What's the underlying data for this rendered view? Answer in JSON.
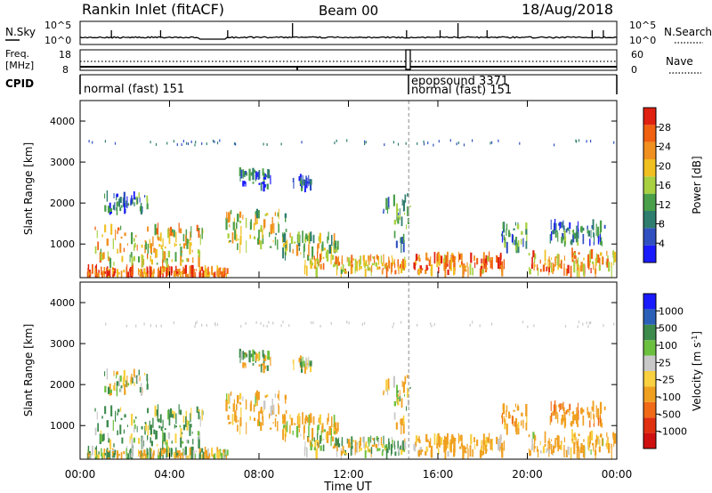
{
  "header": {
    "station": "Rankin Inlet (fitACF)",
    "beam": "Beam 00",
    "date": "18/Aug/2018"
  },
  "noise_panel": {
    "left_label": "N.Sky",
    "right_label": "N.Search",
    "left_ticks": [
      "10^5",
      "10^0"
    ],
    "right_ticks": [
      "10^5",
      "10^0"
    ]
  },
  "freq_panel": {
    "left_label_1": "Freq.",
    "left_label_2": "[MHz]",
    "left_ticks": [
      "18",
      "8"
    ],
    "right_label": "Nave",
    "right_ticks": [
      "60",
      "0"
    ]
  },
  "cpid_panel": {
    "label": "CPID",
    "segments": [
      {
        "start_hour": 0,
        "text": "normal (fast) 151"
      },
      {
        "start_hour": 14.65,
        "text": "epopsound 3371"
      },
      {
        "start_hour": 14.72,
        "text": "normal (fast) 151"
      }
    ]
  },
  "axes": {
    "xlabel": "Time UT",
    "xticks": [
      "00:00",
      "04:00",
      "08:00",
      "12:00",
      "16:00",
      "20:00",
      "00:00"
    ],
    "ylabel": "Slant Range [km]",
    "yticks": [
      "1000",
      "2000",
      "3000",
      "4000"
    ]
  },
  "power_colorbar": {
    "label": "Power [dB]",
    "ticks": [
      "4",
      "8",
      "12",
      "16",
      "20",
      "24",
      "28"
    ],
    "colors": [
      "#1a1aff",
      "#3050c0",
      "#2e7d6e",
      "#4aa04a",
      "#a8d040",
      "#f0c020",
      "#f09020",
      "#f06010",
      "#e02010"
    ]
  },
  "velocity_colorbar": {
    "label": "Velocity [m s",
    "label_sup": "-1",
    "label_end": "]",
    "ticks": [
      "1000",
      "500",
      "100",
      "25",
      "-25",
      "-100",
      "-500",
      "-1000"
    ],
    "colors": [
      "#1a1aff",
      "#2a60b8",
      "#3c8a4c",
      "#6cc040",
      "#c8c8c8",
      "#f8d040",
      "#f0a020",
      "#f06a18",
      "#e03010",
      "#d01010"
    ]
  },
  "chart_data": [
    {
      "type": "heatmap",
      "name": "Power",
      "x_range_hours": [
        0,
        24
      ],
      "y_range_km": [
        180,
        4500
      ],
      "color_range": [
        0,
        30
      ],
      "regions": [
        {
          "t0": 0.3,
          "t1": 6.6,
          "r0": 200,
          "r1": 400,
          "value": 24
        },
        {
          "t0": 0.6,
          "t1": 5.5,
          "r0": 500,
          "r1": 1400,
          "value": 18
        },
        {
          "t0": 1.0,
          "t1": 3.0,
          "r0": 1800,
          "r1": 2200,
          "value": 8
        },
        {
          "t0": 6.5,
          "t1": 9.4,
          "r0": 900,
          "r1": 1800,
          "value": 16
        },
        {
          "t0": 7.0,
          "t1": 8.5,
          "r0": 2400,
          "r1": 2800,
          "value": 6
        },
        {
          "t0": 9.5,
          "t1": 10.3,
          "r0": 2400,
          "r1": 2600,
          "value": 5
        },
        {
          "t0": 9.0,
          "t1": 11.5,
          "r0": 700,
          "r1": 1200,
          "value": 14
        },
        {
          "t0": 10.0,
          "t1": 14.5,
          "r0": 300,
          "r1": 700,
          "value": 20
        },
        {
          "t0": 13.5,
          "t1": 14.8,
          "r0": 900,
          "r1": 2200,
          "value": 10
        },
        {
          "t0": 14.9,
          "t1": 19.0,
          "r0": 300,
          "r1": 700,
          "value": 22
        },
        {
          "t0": 18.8,
          "t1": 20.0,
          "r0": 900,
          "r1": 1500,
          "value": 10
        },
        {
          "t0": 20.0,
          "t1": 23.9,
          "r0": 300,
          "r1": 800,
          "value": 21
        },
        {
          "t0": 21.0,
          "t1": 23.5,
          "r0": 1000,
          "r1": 1500,
          "value": 8
        }
      ]
    },
    {
      "type": "heatmap",
      "name": "Velocity",
      "x_range_hours": [
        0,
        24
      ],
      "y_range_km": [
        180,
        4500
      ],
      "color_range": [
        -1000,
        1000
      ],
      "regions": [
        {
          "t0": 0.3,
          "t1": 6.6,
          "r0": 200,
          "r1": 400,
          "value": 0
        },
        {
          "t0": 0.6,
          "t1": 5.5,
          "r0": 500,
          "r1": 1400,
          "value": 150
        },
        {
          "t0": 1.0,
          "t1": 3.0,
          "r0": 1800,
          "r1": 2300,
          "value": 0
        },
        {
          "t0": 6.5,
          "t1": 9.4,
          "r0": 900,
          "r1": 1800,
          "value": -200
        },
        {
          "t0": 7.0,
          "t1": 8.5,
          "r0": 2400,
          "r1": 2800,
          "value": 0
        },
        {
          "t0": 9.5,
          "t1": 10.3,
          "r0": 2400,
          "r1": 2600,
          "value": 0
        },
        {
          "t0": 9.0,
          "t1": 11.5,
          "r0": 700,
          "r1": 1200,
          "value": -150
        },
        {
          "t0": 10.0,
          "t1": 14.5,
          "r0": 300,
          "r1": 700,
          "value": 50
        },
        {
          "t0": 13.5,
          "t1": 14.8,
          "r0": 900,
          "r1": 2200,
          "value": -100
        },
        {
          "t0": 14.9,
          "t1": 19.0,
          "r0": 300,
          "r1": 700,
          "value": -250
        },
        {
          "t0": 18.8,
          "t1": 20.0,
          "r0": 900,
          "r1": 1500,
          "value": -300
        },
        {
          "t0": 20.0,
          "t1": 23.9,
          "r0": 300,
          "r1": 800,
          "value": -200
        },
        {
          "t0": 21.0,
          "t1": 23.5,
          "r0": 1000,
          "r1": 1500,
          "value": -400
        }
      ]
    }
  ]
}
